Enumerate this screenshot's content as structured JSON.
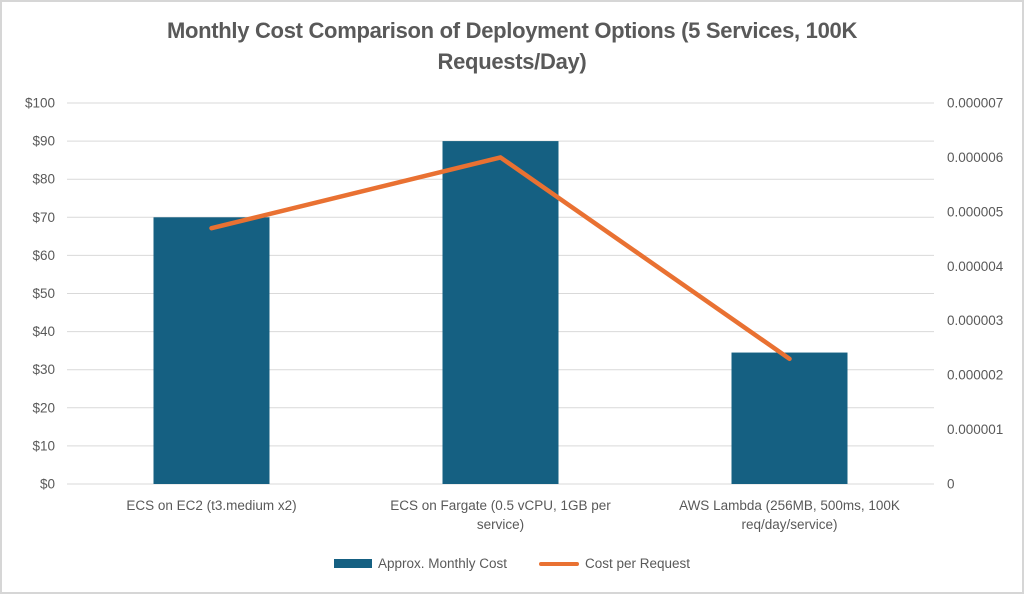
{
  "chart_data": {
    "type": "bar",
    "subtype": "combo-bar-line-dual-axis",
    "title": "Monthly Cost Comparison of Deployment Options (5 Services, 100K Requests/Day)",
    "categories": [
      "ECS on EC2 (t3.medium x2)",
      "ECS on Fargate (0.5 vCPU, 1GB per service)",
      "AWS Lambda (256MB, 500ms, 100K req/day/service)"
    ],
    "series": [
      {
        "name": "Approx. Monthly Cost",
        "type": "bar",
        "axis": "left",
        "color": "#156082",
        "values": [
          70,
          90,
          34.5
        ]
      },
      {
        "name": "Cost per Request",
        "type": "line",
        "axis": "right",
        "color": "#E97132",
        "values": [
          4.7e-06,
          6e-06,
          2.3e-06
        ]
      }
    ],
    "left_axis": {
      "min": 0,
      "max": 100,
      "step": 10,
      "tick_labels": [
        "$0",
        "$10",
        "$20",
        "$30",
        "$40",
        "$50",
        "$60",
        "$70",
        "$80",
        "$90",
        "$100"
      ]
    },
    "right_axis": {
      "min": 0,
      "max": 7e-06,
      "step": 1e-06,
      "tick_labels": [
        "0",
        "0.000001",
        "0.000002",
        "0.000003",
        "0.000004",
        "0.000005",
        "0.000006",
        "0.000007"
      ]
    },
    "grid": true,
    "legend_position": "bottom",
    "colors": {
      "bar": "#156082",
      "line": "#E97132",
      "gridline": "#D9D9D9",
      "text": "#595959",
      "background": "#FFFFFF",
      "frame_border": "#D6D6D6"
    }
  }
}
